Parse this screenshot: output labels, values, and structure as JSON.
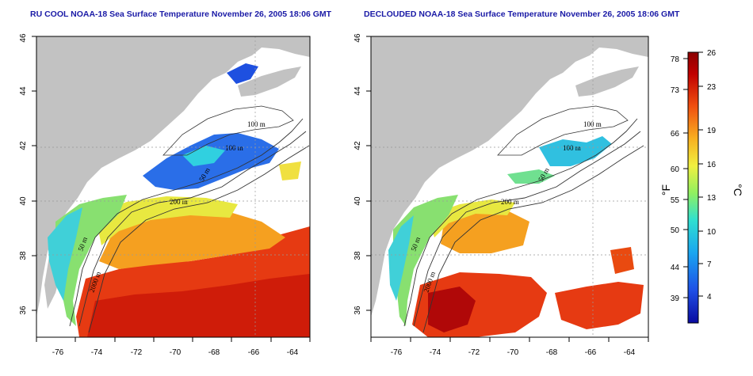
{
  "panels": [
    {
      "title": "RU COOL NOAA-18 Sea Surface Temperature November 26, 2005 18:06 GMT",
      "contour_labels": [
        "100 m",
        "100 m",
        "50 m",
        "200 m",
        "50 m",
        "2000 m"
      ]
    },
    {
      "title": "DECLOUDED NOAA-18 Sea Surface Temperature November 26, 2005 18:06 GMT",
      "contour_labels": [
        "100 m",
        "100 m",
        "50 m",
        "200 m",
        "50 m",
        "2000 m"
      ]
    }
  ],
  "axes": {
    "x_ticks": [
      "-76",
      "-74",
      "-72",
      "-70",
      "-68",
      "-66",
      "-64"
    ],
    "y_ticks": [
      "36",
      "38",
      "40",
      "42",
      "44",
      "46"
    ],
    "x_range": [
      -77,
      -63
    ],
    "y_range": [
      35,
      46
    ]
  },
  "colorbar": {
    "fahrenheit_ticks": [
      "78",
      "73",
      "66",
      "60",
      "55",
      "50",
      "44",
      "39"
    ],
    "celsius_ticks": [
      "26",
      "23",
      "19",
      "16",
      "13",
      "10",
      "7",
      "4"
    ],
    "fahrenheit_unit": "°F",
    "celsius_unit": "°C",
    "range_c": [
      1,
      26
    ],
    "colors": [
      "#0a0aa0",
      "#1e4fe6",
      "#1aa6f0",
      "#30e0d0",
      "#90f060",
      "#f0f040",
      "#f8b020",
      "#f05010",
      "#c00000",
      "#8a0000"
    ]
  },
  "colors": {
    "land": "#c2c2c2",
    "title": "#1a1aa6",
    "grid": "#999999"
  }
}
